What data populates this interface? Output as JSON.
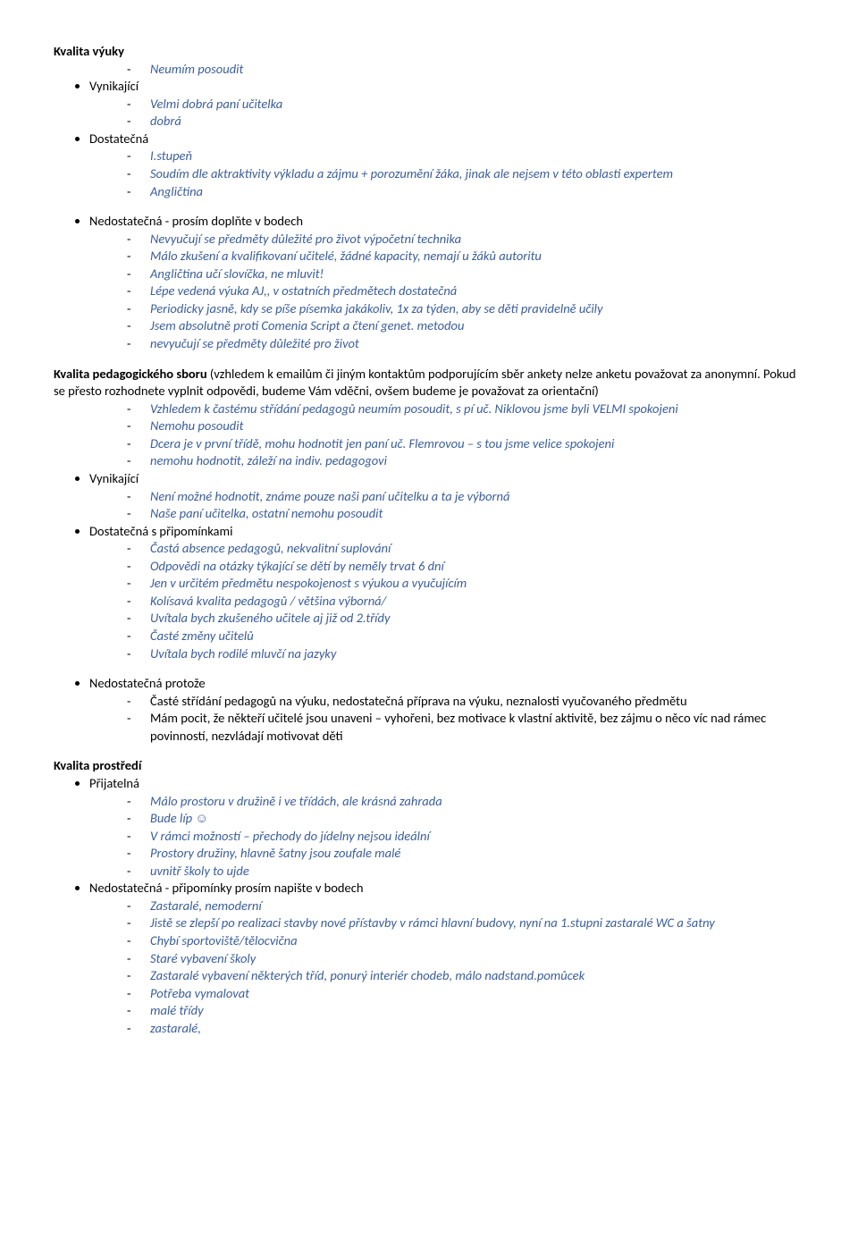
{
  "colors": {
    "text": "#000000",
    "accent": "#3b5e9a",
    "background": "#ffffff"
  },
  "typography": {
    "font_family": "Calibri",
    "body_size_pt": 11,
    "bold_weight": 700
  },
  "sections": [
    {
      "title": "Kvalita výuky",
      "groups": [
        {
          "label": null,
          "items": [
            {
              "text": "Neumím posoudit",
              "italic": true,
              "blue": true
            }
          ]
        },
        {
          "label": "Vynikající",
          "items": [
            {
              "text": "Velmi dobrá paní učitelka",
              "italic": true,
              "blue": true
            },
            {
              "text": "dobrá",
              "italic": true,
              "blue": true
            }
          ]
        },
        {
          "label": "Dostatečná",
          "items": [
            {
              "text": "I.stupeň",
              "italic": true,
              "blue": true
            },
            {
              "text": "Soudím dle aktraktivity výkladu a zájmu + porozumění žáka, jinak ale nejsem v této oblasti expertem",
              "italic": true,
              "blue": true
            },
            {
              "text": "Angličtina",
              "italic": true,
              "blue": true
            }
          ]
        },
        {
          "label": "Nedostatečná - prosím doplňte v bodech",
          "spaced": true,
          "items": [
            {
              "text": "Nevyučují se předměty důležité pro život výpočetní technika",
              "italic": true,
              "blue": true
            },
            {
              "text": "Málo zkušení a kvalifikovaní učitelé, žádné kapacity, nemají u žáků autoritu",
              "italic": true,
              "blue": true
            },
            {
              "text": "Angličtina učí slovíčka, ne mluvit!",
              "italic": true,
              "blue": true
            },
            {
              "text": "Lépe vedená výuka AJ,, v ostatních předmětech dostatečná",
              "italic": true,
              "blue": true
            },
            {
              "text": "Periodicky jasně, kdy se píše písemka jakákoliv, 1x za týden, aby se děti pravidelně učily",
              "italic": true,
              "blue": true
            },
            {
              "text": "Jsem absolutně proti Comenia Script a čtení genet. metodou",
              "italic": true,
              "blue": true
            },
            {
              "text": "nevyučují se předměty důležité pro život",
              "italic": true,
              "blue": true
            }
          ]
        }
      ]
    },
    {
      "title_inline": "Kvalita pedagogického sboru",
      "title_tail": " (vzhledem k emailům či jiným kontaktům podporujícím sběr ankety nelze anketu považovat za anonymní. Pokud se přesto rozhodnete vyplnit odpovědi, budeme Vám vděčni, ovšem budeme je považovat za orientační)",
      "groups": [
        {
          "label": null,
          "items": [
            {
              "text": "Vzhledem k častému střídání pedagogů neumím posoudit, s pí uč. Niklovou jsme byli VELMI spokojeni",
              "italic": true,
              "blue": true
            },
            {
              "text": "Nemohu posoudit",
              "italic": true,
              "blue": true
            },
            {
              "text": "Dcera je v první třídě, mohu hodnotit jen paní uč. Flemrovou – s tou jsme velice spokojeni",
              "italic": true,
              "blue": true
            },
            {
              "text": "nemohu hodnotit, záleží na indiv. pedagogovi",
              "italic": true,
              "blue": true
            }
          ]
        },
        {
          "label": "Vynikající",
          "items": [
            {
              "text": "Není možné hodnotit, známe pouze naši paní učitelku a ta je výborná",
              "italic": true,
              "blue": true
            },
            {
              "text": "Naše paní učitelka, ostatní nemohu posoudit",
              "italic": true,
              "blue": true
            }
          ]
        },
        {
          "label": "Dostatečná s připomínkami",
          "items": [
            {
              "text": "Častá absence pedagogů, nekvalitní suplování",
              "italic": true,
              "blue": true
            },
            {
              "text": "Odpovědi na otázky týkající se dětí by neměly trvat 6 dní",
              "italic": true,
              "blue": true
            },
            {
              "text": "Jen v určitém předmětu nespokojenost s výukou a vyučujícím",
              "italic": true,
              "blue": true
            },
            {
              "text": "Kolísavá kvalita pedagogů / většina výborná/",
              "italic": true,
              "blue": true
            },
            {
              "text": "Uvítala bych zkušeného učitele aj již od 2.třídy",
              "italic": true,
              "blue": true
            },
            {
              "text": "Časté změny učitelů",
              "italic": true,
              "blue": true
            },
            {
              "text": "Uvítala bych rodilé mluvčí na jazyky",
              "italic": true,
              "blue": true
            }
          ]
        },
        {
          "label": "Nedostatečná protože",
          "spaced": true,
          "items": [
            {
              "text": "Časté střídání pedagogů na výuku, nedostatečná příprava na výuku, neznalosti vyučovaného předmětu",
              "italic": false,
              "blue": false
            },
            {
              "text": "Mám pocit, že někteří učitelé jsou unaveni – vyhořeni, bez motivace k vlastní aktivitě, bez zájmu o něco víc nad rámec povinností, nezvládají motivovat děti",
              "italic": false,
              "blue": false
            }
          ]
        }
      ]
    },
    {
      "title": "Kvalita prostředí",
      "groups": [
        {
          "label": "Přijatelná",
          "items": [
            {
              "text": "Málo prostoru v družině i ve třídách, ale krásná zahrada",
              "italic": true,
              "blue": true
            },
            {
              "text": "Bude líp ☺",
              "italic": true,
              "blue": true
            },
            {
              "text": "V rámci možností – přechody do jídelny nejsou ideální",
              "italic": true,
              "blue": true
            },
            {
              "text": "Prostory družiny, hlavně šatny jsou zoufale malé",
              "italic": true,
              "blue": true
            },
            {
              "text": "  uvnitř školy to ujde",
              "italic": true,
              "blue": true
            }
          ]
        },
        {
          "label": "Nedostatečná  - připomínky prosím napište v bodech",
          "items": [
            {
              "text": "Zastaralé, nemoderní",
              "italic": true,
              "blue": true
            },
            {
              "text": "Jistě se zlepší po realizaci stavby nové přístavby v rámci hlavní budovy, nyní na 1.stupni zastaralé WC a šatny",
              "italic": true,
              "blue": true
            },
            {
              "text": "Chybí sportoviště/tělocvična",
              "italic": true,
              "blue": true
            },
            {
              "text": "Staré vybavení školy",
              "italic": true,
              "blue": true
            },
            {
              "text": "Zastaralé vybavení některých tříd, ponurý interiér chodeb, málo nadstand.pomůcek",
              "italic": true,
              "blue": true
            },
            {
              "text": "Potřeba vymalovat",
              "italic": true,
              "blue": true
            },
            {
              "text": "malé třídy",
              "italic": true,
              "blue": true
            },
            {
              "text": "zastaralé,",
              "italic": true,
              "blue": true
            }
          ]
        }
      ]
    }
  ]
}
